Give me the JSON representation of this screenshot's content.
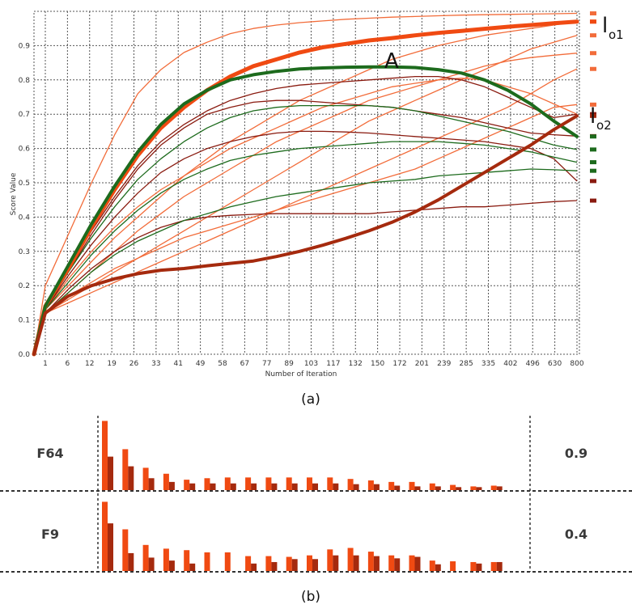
{
  "colors": {
    "orange": "#f04a12",
    "light_orange": "#f26c3a",
    "dark_red": "#8a1b10",
    "brown_red": "#a52a0e",
    "green": "#1d6b1d",
    "dark_green": "#1b5e20",
    "grid": "#555555"
  },
  "chart_data": [
    {
      "type": "line",
      "caption": "(a)",
      "xlabel": "Number of Iteration",
      "ylabel": "Score Value",
      "x_tick_labels": [
        "1",
        "6",
        "12",
        "19",
        "26",
        "33",
        "41",
        "49",
        "58",
        "67",
        "77",
        "89",
        "103",
        "117",
        "132",
        "150",
        "172",
        "201",
        "239",
        "285",
        "335",
        "402",
        "496",
        "630",
        "800"
      ],
      "y_ticks": [
        0.0,
        0.1,
        0.2,
        0.3,
        0.4,
        0.5,
        0.6,
        0.7,
        0.8,
        0.9
      ],
      "y_tick_labels": [
        "0.0",
        "0.1",
        "0.2",
        "0.3",
        "0.4",
        "0.5",
        "0.6",
        "0.7",
        "0.8",
        "0.9"
      ],
      "ylim": [
        0,
        1.0
      ],
      "grid": true,
      "annotations": {
        "a": "A",
        "lo1_main": "l",
        "lo1_sub": "o1",
        "lo2_main": "l",
        "lo2_sub": "o2"
      },
      "highlight_series": [
        {
          "role": "lo1",
          "color": "#f04a12",
          "width": 5,
          "values": [
            0.0,
            0.14,
            0.25,
            0.37,
            0.48,
            0.58,
            0.66,
            0.72,
            0.77,
            0.81,
            0.84,
            0.86,
            0.88,
            0.895,
            0.905,
            0.915,
            0.922,
            0.93,
            0.937,
            0.943,
            0.949,
            0.955,
            0.96,
            0.965,
            0.97
          ]
        },
        {
          "role": "A",
          "color": "#1d6b1d",
          "width": 4,
          "values": [
            0.0,
            0.14,
            0.26,
            0.38,
            0.49,
            0.59,
            0.67,
            0.73,
            0.77,
            0.8,
            0.815,
            0.825,
            0.832,
            0.835,
            0.837,
            0.838,
            0.838,
            0.836,
            0.83,
            0.82,
            0.8,
            0.77,
            0.73,
            0.68,
            0.635
          ]
        },
        {
          "role": "lo2",
          "color": "#a52a0e",
          "width": 4,
          "values": [
            0.0,
            0.12,
            0.17,
            0.2,
            0.22,
            0.235,
            0.245,
            0.25,
            0.258,
            0.265,
            0.272,
            0.285,
            0.3,
            0.318,
            0.338,
            0.36,
            0.385,
            0.415,
            0.45,
            0.49,
            0.53,
            0.57,
            0.61,
            0.655,
            0.695
          ]
        }
      ],
      "series": [
        {
          "color": "#f26c3a",
          "values": [
            0.0,
            0.2,
            0.35,
            0.5,
            0.64,
            0.76,
            0.83,
            0.88,
            0.91,
            0.935,
            0.95,
            0.96,
            0.967,
            0.972,
            0.977,
            0.98,
            0.983,
            0.985,
            0.987,
            0.989,
            0.99,
            0.991,
            0.992,
            0.993,
            0.994
          ]
        },
        {
          "color": "#f26c3a",
          "values": [
            0.0,
            0.13,
            0.2,
            0.27,
            0.34,
            0.4,
            0.46,
            0.52,
            0.57,
            0.62,
            0.66,
            0.7,
            0.74,
            0.77,
            0.8,
            0.83,
            0.86,
            0.88,
            0.9,
            0.915,
            0.93,
            0.94,
            0.95,
            0.96,
            0.97
          ]
        },
        {
          "color": "#f26c3a",
          "values": [
            0.0,
            0.12,
            0.16,
            0.2,
            0.24,
            0.28,
            0.32,
            0.36,
            0.4,
            0.44,
            0.48,
            0.52,
            0.56,
            0.6,
            0.64,
            0.68,
            0.71,
            0.74,
            0.77,
            0.8,
            0.83,
            0.86,
            0.89,
            0.91,
            0.93
          ]
        },
        {
          "color": "#f26c3a",
          "values": [
            0.0,
            0.12,
            0.18,
            0.24,
            0.3,
            0.36,
            0.41,
            0.46,
            0.5,
            0.54,
            0.58,
            0.62,
            0.65,
            0.68,
            0.71,
            0.74,
            0.76,
            0.78,
            0.8,
            0.82,
            0.84,
            0.855,
            0.865,
            0.872,
            0.878
          ]
        },
        {
          "color": "#f26c3a",
          "values": [
            0.0,
            0.12,
            0.15,
            0.18,
            0.21,
            0.24,
            0.27,
            0.3,
            0.33,
            0.36,
            0.39,
            0.42,
            0.45,
            0.48,
            0.51,
            0.54,
            0.57,
            0.6,
            0.63,
            0.66,
            0.69,
            0.72,
            0.76,
            0.8,
            0.832
          ]
        },
        {
          "color": "#f26c3a",
          "values": [
            0.0,
            0.13,
            0.22,
            0.3,
            0.37,
            0.43,
            0.48,
            0.52,
            0.56,
            0.6,
            0.63,
            0.66,
            0.69,
            0.72,
            0.74,
            0.76,
            0.78,
            0.79,
            0.8,
            0.805,
            0.8,
            0.78,
            0.76,
            0.73,
            0.7
          ]
        },
        {
          "color": "#f26c3a",
          "values": [
            0.0,
            0.12,
            0.17,
            0.21,
            0.25,
            0.28,
            0.31,
            0.34,
            0.36,
            0.38,
            0.4,
            0.42,
            0.44,
            0.46,
            0.48,
            0.5,
            0.52,
            0.54,
            0.57,
            0.6,
            0.63,
            0.66,
            0.69,
            0.72,
            0.728
          ]
        },
        {
          "color": "#8a1b10",
          "values": [
            0.0,
            0.14,
            0.25,
            0.36,
            0.46,
            0.55,
            0.62,
            0.67,
            0.71,
            0.74,
            0.76,
            0.775,
            0.785,
            0.79,
            0.795,
            0.8,
            0.805,
            0.81,
            0.81,
            0.8,
            0.78,
            0.75,
            0.72,
            0.69,
            0.7
          ]
        },
        {
          "color": "#8a1b10",
          "values": [
            0.0,
            0.13,
            0.23,
            0.32,
            0.4,
            0.47,
            0.53,
            0.57,
            0.6,
            0.62,
            0.635,
            0.645,
            0.65,
            0.65,
            0.648,
            0.645,
            0.64,
            0.635,
            0.63,
            0.625,
            0.62,
            0.61,
            0.6,
            0.57,
            0.505
          ]
        },
        {
          "color": "#8a1b10",
          "values": [
            0.0,
            0.12,
            0.19,
            0.25,
            0.3,
            0.34,
            0.37,
            0.39,
            0.4,
            0.405,
            0.408,
            0.41,
            0.41,
            0.41,
            0.41,
            0.41,
            0.415,
            0.42,
            0.425,
            0.43,
            0.43,
            0.435,
            0.44,
            0.445,
            0.448
          ]
        },
        {
          "color": "#8a1b10",
          "values": [
            0.0,
            0.13,
            0.24,
            0.35,
            0.45,
            0.54,
            0.61,
            0.66,
            0.7,
            0.72,
            0.735,
            0.74,
            0.74,
            0.735,
            0.73,
            0.725,
            0.72,
            0.71,
            0.7,
            0.69,
            0.675,
            0.66,
            0.645,
            0.64,
            0.636
          ]
        },
        {
          "color": "#1d6b1d",
          "values": [
            0.0,
            0.14,
            0.24,
            0.34,
            0.43,
            0.51,
            0.57,
            0.62,
            0.66,
            0.69,
            0.71,
            0.72,
            0.725,
            0.725,
            0.725,
            0.725,
            0.72,
            0.71,
            0.695,
            0.68,
            0.665,
            0.65,
            0.63,
            0.61,
            0.597
          ]
        },
        {
          "color": "#1d6b1d",
          "values": [
            0.0,
            0.13,
            0.21,
            0.29,
            0.36,
            0.42,
            0.47,
            0.51,
            0.54,
            0.565,
            0.58,
            0.59,
            0.6,
            0.605,
            0.61,
            0.615,
            0.62,
            0.62,
            0.62,
            0.615,
            0.61,
            0.6,
            0.59,
            0.575,
            0.56
          ]
        },
        {
          "color": "#1d6b1d",
          "values": [
            0.0,
            0.12,
            0.18,
            0.24,
            0.29,
            0.33,
            0.36,
            0.39,
            0.41,
            0.43,
            0.445,
            0.46,
            0.47,
            0.48,
            0.49,
            0.5,
            0.505,
            0.51,
            0.52,
            0.525,
            0.53,
            0.535,
            0.54,
            0.538,
            0.535
          ]
        }
      ],
      "end_marker_values": [
        0.994,
        0.97,
        0.93,
        0.918,
        0.878,
        0.832,
        0.728,
        0.7,
        0.695,
        0.636,
        0.635,
        0.597,
        0.56,
        0.535,
        0.505,
        0.448
      ]
    },
    {
      "type": "bar",
      "caption": "(b)",
      "rows": [
        {
          "label": "F64",
          "score": "0.9",
          "light": [
            0.93,
            0.55,
            0.3,
            0.22,
            0.14,
            0.16,
            0.17,
            0.17,
            0.17,
            0.17,
            0.17,
            0.17,
            0.15,
            0.13,
            0.11,
            0.11,
            0.09,
            0.07,
            0.05,
            0.06
          ],
          "dark": [
            0.45,
            0.32,
            0.16,
            0.11,
            0.09,
            0.09,
            0.09,
            0.09,
            0.09,
            0.09,
            0.09,
            0.09,
            0.08,
            0.08,
            0.06,
            0.05,
            0.05,
            0.04,
            0.04,
            0.05
          ]
        },
        {
          "label": "F9",
          "score": "0.4",
          "light": [
            0.93,
            0.56,
            0.35,
            0.3,
            0.28,
            0.25,
            0.25,
            0.2,
            0.2,
            0.19,
            0.21,
            0.29,
            0.31,
            0.26,
            0.21,
            0.21,
            0.14,
            0.13,
            0.12,
            0.12
          ],
          "dark": [
            0.64,
            0.24,
            0.18,
            0.14,
            0.1,
            0.0,
            0.0,
            0.1,
            0.12,
            0.16,
            0.16,
            0.21,
            0.21,
            0.2,
            0.17,
            0.19,
            0.09,
            0.0,
            0.1,
            0.12
          ]
        }
      ]
    }
  ]
}
